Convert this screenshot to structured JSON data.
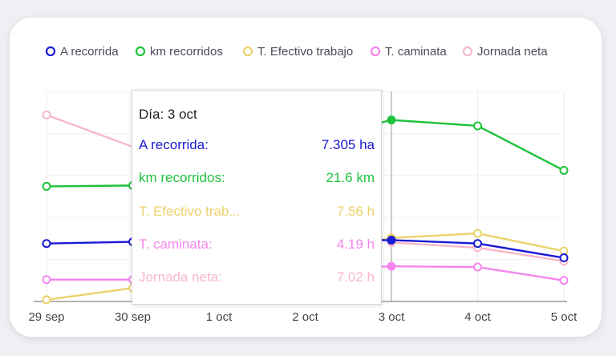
{
  "chart_data": {
    "type": "line",
    "categories": [
      "29 sep",
      "30 sep",
      "1 oct",
      "2 oct",
      "3 oct",
      "4 oct",
      "5 oct"
    ],
    "series": [
      {
        "name": "A recorrida",
        "color": "#1a1ad6",
        "values": [
          6.9,
          7.1,
          null,
          null,
          7.305,
          6.9,
          5.2
        ]
      },
      {
        "name": "km recorridos",
        "color": "#1ec23c",
        "values": [
          13.7,
          13.8,
          null,
          null,
          21.6,
          20.9,
          15.6
        ]
      },
      {
        "name": "T. Efectivo trabajo",
        "color": "#ebd26b",
        "values": [
          0.2,
          1.6,
          null,
          null,
          7.56,
          8.1,
          6.0
        ]
      },
      {
        "name": "T. caminata",
        "color": "#f586ee",
        "values": [
          2.6,
          2.6,
          null,
          null,
          4.19,
          4.1,
          2.5
        ]
      },
      {
        "name": "Jornada neta",
        "color": "#f7b8c8",
        "values": [
          22.2,
          null,
          null,
          null,
          7.02,
          6.4,
          4.8
        ]
      }
    ],
    "ylim": [
      0,
      25
    ],
    "grid": true,
    "legend": "top"
  },
  "tooltip": {
    "title": "Día: 3 oct",
    "rows": [
      {
        "label": "A recorrida:",
        "value": "7.305 ha",
        "color": "#1a1ad6"
      },
      {
        "label": "km recorridos:",
        "value": "21.6 km",
        "color": "#1ec23c"
      },
      {
        "label": "T. Efectivo trab...",
        "value": "7.56 h",
        "color": "#ebd26b"
      },
      {
        "label": "T. caminata:",
        "value": "4.19 h",
        "color": "#f586ee"
      },
      {
        "label": "Jornada neta:",
        "value": "7.02 h",
        "color": "#f7b8c8"
      }
    ]
  }
}
